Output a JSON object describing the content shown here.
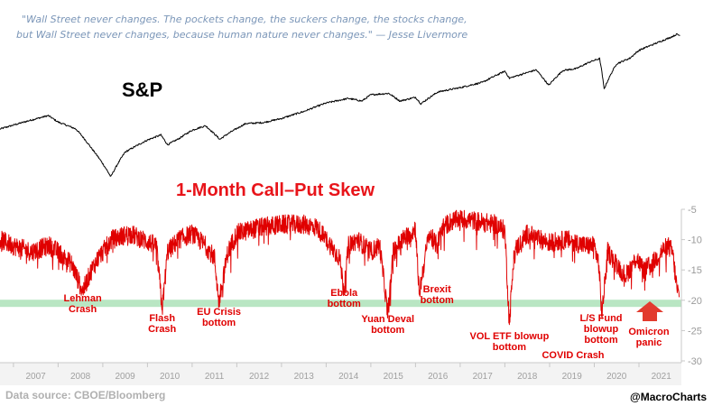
{
  "quote": {
    "line1": "\"Wall Street never changes. The pockets change, the suckers change, the stocks change,",
    "line2": "but Wall Street never changes, because human nature never changes.\" — Jesse Livermore"
  },
  "footer": {
    "source": "Data source: CBOE/Bloomberg",
    "handle": "@MacroCharts"
  },
  "chart_data": [
    {
      "type": "line",
      "name": "S&P",
      "title": "S&P",
      "x_range": [
        2006.7,
        2021.95
      ],
      "y_scale": "relative (no axis)",
      "series": [
        {
          "name": "S&P",
          "color": "#000000",
          "x": [
            2006.7,
            2007.2,
            2007.78,
            2008.0,
            2008.4,
            2008.75,
            2008.95,
            2009.18,
            2009.5,
            2010.0,
            2010.3,
            2010.45,
            2010.7,
            2011.0,
            2011.3,
            2011.62,
            2011.8,
            2012.2,
            2012.6,
            2013.0,
            2013.5,
            2014.0,
            2014.5,
            2014.8,
            2015.0,
            2015.4,
            2015.65,
            2016.0,
            2016.12,
            2016.5,
            2017.0,
            2017.5,
            2018.0,
            2018.1,
            2018.7,
            2018.98,
            2019.3,
            2019.6,
            2019.9,
            2020.12,
            2020.22,
            2020.5,
            2020.8,
            2021.0,
            2021.4,
            2021.7,
            2021.85,
            2021.92
          ],
          "values": [
            1300,
            1420,
            1560,
            1430,
            1300,
            1000,
            850,
            680,
            950,
            1120,
            1200,
            1050,
            1140,
            1280,
            1360,
            1130,
            1220,
            1400,
            1420,
            1500,
            1650,
            1850,
            1970,
            1900,
            2070,
            2110,
            1900,
            2000,
            1830,
            2150,
            2280,
            2450,
            2850,
            2590,
            2900,
            2350,
            2880,
            2950,
            3230,
            3380,
            2240,
            3150,
            3400,
            3780,
            4180,
            4500,
            4700,
            4620
          ]
        }
      ]
    },
    {
      "type": "line",
      "name": "1-Month Call-Put Skew",
      "title": "1-Month Call–Put Skew",
      "xlabel": "",
      "ylabel": "",
      "ylim": [
        -30,
        -5
      ],
      "y_ticks": [
        "-5",
        "-10",
        "-15",
        "-20",
        "-25",
        "-30"
      ],
      "x_range": [
        2006.7,
        2021.95
      ],
      "x_ticks": [
        "2007",
        "2008",
        "2009",
        "2010",
        "2011",
        "2012",
        "2013",
        "2014",
        "2015",
        "2016",
        "2017",
        "2018",
        "2019",
        "2020",
        "2021"
      ],
      "reference_band": {
        "value": -20.5,
        "color": "#b9e6c3"
      },
      "series": [
        {
          "name": "1-Month Call-Put Skew",
          "color": "#e00000",
          "x": [
            2006.7,
            2007.0,
            2007.4,
            2007.8,
            2008.0,
            2008.3,
            2008.55,
            2008.75,
            2008.9,
            2009.2,
            2009.6,
            2009.9,
            2010.2,
            2010.33,
            2010.45,
            2010.7,
            2011.0,
            2011.3,
            2011.5,
            2011.6,
            2011.8,
            2012.0,
            2012.5,
            2013.0,
            2013.5,
            2013.8,
            2014.0,
            2014.3,
            2014.4,
            2014.5,
            2014.7,
            2015.0,
            2015.2,
            2015.38,
            2015.5,
            2015.7,
            2015.9,
            2016.0,
            2016.08,
            2016.3,
            2016.48,
            2016.6,
            2016.8,
            2017.0,
            2017.4,
            2017.8,
            2018.0,
            2018.1,
            2018.2,
            2018.5,
            2018.8,
            2019.0,
            2019.4,
            2019.8,
            2020.0,
            2020.1,
            2020.17,
            2020.3,
            2020.5,
            2020.7,
            2020.95,
            2021.1,
            2021.3,
            2021.5,
            2021.65,
            2021.75,
            2021.85,
            2021.9
          ],
          "values": [
            -10,
            -11,
            -12,
            -11,
            -12,
            -14,
            -18.5,
            -15,
            -13,
            -10,
            -9,
            -10,
            -11,
            -21.5,
            -12,
            -10,
            -9,
            -11,
            -13,
            -20.5,
            -12,
            -9,
            -8,
            -7.5,
            -7.5,
            -8,
            -10,
            -13,
            -18.5,
            -11,
            -10,
            -12,
            -11,
            -22.5,
            -12,
            -10,
            -9,
            -8,
            -19,
            -9,
            -11,
            -8,
            -7,
            -6.5,
            -7,
            -7.5,
            -8.5,
            -24,
            -12,
            -9,
            -10,
            -10.5,
            -10,
            -11,
            -11,
            -14,
            -22.5,
            -12,
            -14,
            -16,
            -13,
            -15,
            -14,
            -12,
            -11,
            -12,
            -18,
            -19.5
          ]
        }
      ],
      "annotations": [
        {
          "lines": [
            "Lehman",
            "Crash"
          ],
          "x": 2008.55
        },
        {
          "lines": [
            "Flash",
            "Crash"
          ],
          "x": 2010.33
        },
        {
          "lines": [
            "EU Crisis",
            "bottom"
          ],
          "x": 2011.6
        },
        {
          "lines": [
            "Ebola",
            "bottom"
          ],
          "x": 2014.4
        },
        {
          "lines": [
            "Yuan Deval",
            "bottom"
          ],
          "x": 2015.38
        },
        {
          "lines": [
            "Brexit",
            "bottom"
          ],
          "x": 2016.48
        },
        {
          "lines": [
            "VOL ETF blowup",
            "bottom"
          ],
          "x": 2018.1
        },
        {
          "lines": [
            "COVID Crash"
          ],
          "x": 2020.17
        },
        {
          "lines": [
            "L/S Fund",
            "blowup",
            "bottom"
          ],
          "x": 2020.95
        },
        {
          "lines": [
            "Omicron",
            "panic"
          ],
          "x": 2021.9
        }
      ]
    }
  ]
}
